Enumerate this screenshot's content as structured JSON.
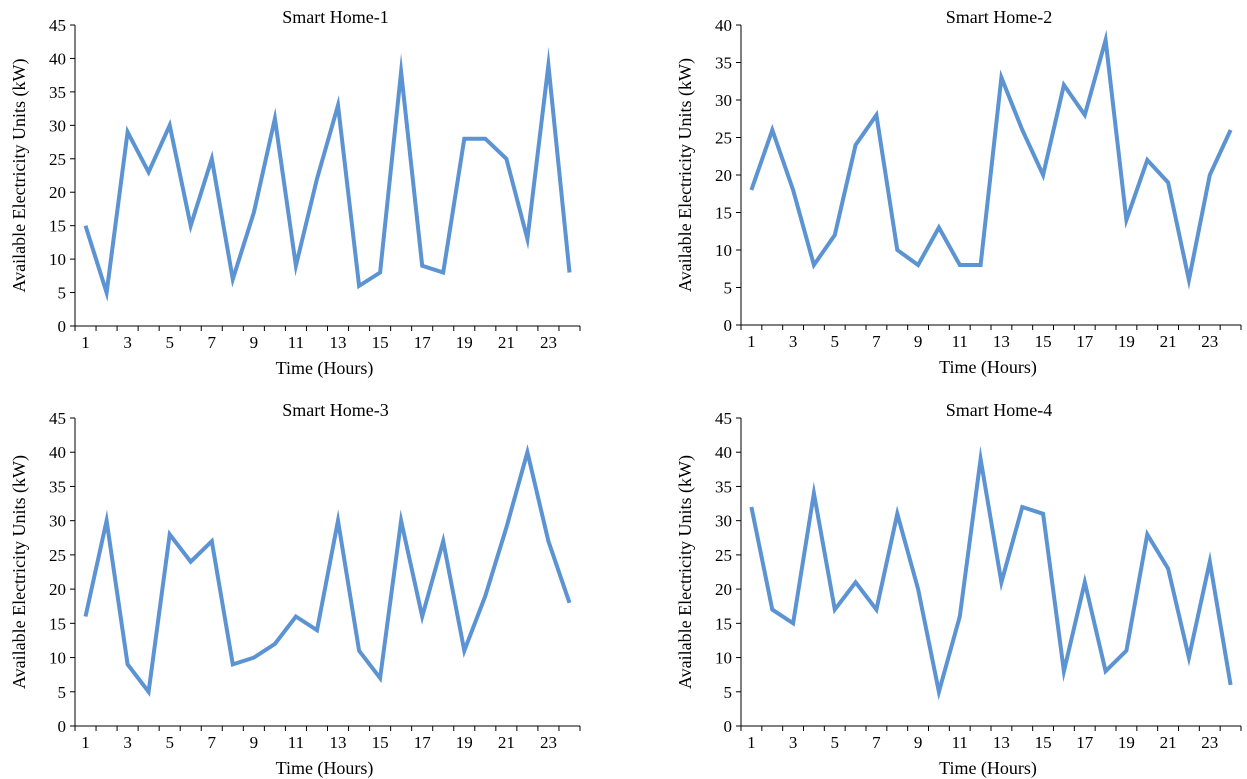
{
  "line_color": "#5b93d3",
  "chart_data": [
    {
      "type": "line",
      "title": "Smart Home-1",
      "xlabel": "Time (Hours)",
      "ylabel": "Available Electricity Units (kW)",
      "x": [
        1,
        2,
        3,
        4,
        5,
        6,
        7,
        8,
        9,
        10,
        11,
        12,
        13,
        14,
        15,
        16,
        17,
        18,
        19,
        20,
        21,
        22,
        23,
        24
      ],
      "xticks": [
        "1",
        "3",
        "5",
        "7",
        "9",
        "11",
        "13",
        "15",
        "17",
        "19",
        "21",
        "23"
      ],
      "ylim": [
        0,
        45
      ],
      "yticks": [
        "0",
        "5",
        "10",
        "15",
        "20",
        "25",
        "30",
        "35",
        "40",
        "45"
      ],
      "series": [
        {
          "values": [
            15,
            5,
            29,
            23,
            30,
            15,
            25,
            7,
            17,
            31,
            9,
            22,
            33,
            6,
            8,
            38,
            9,
            8,
            28,
            28,
            25,
            13,
            39,
            8
          ]
        }
      ]
    },
    {
      "type": "line",
      "title": "Smart Home-2",
      "xlabel": "Time (Hours)",
      "ylabel": "Available Electricity Units (kW)",
      "x": [
        1,
        2,
        3,
        4,
        5,
        6,
        7,
        8,
        9,
        10,
        11,
        12,
        13,
        14,
        15,
        16,
        17,
        18,
        19,
        20,
        21,
        22,
        23,
        24
      ],
      "xticks": [
        "1",
        "3",
        "5",
        "7",
        "9",
        "11",
        "13",
        "15",
        "17",
        "19",
        "21",
        "23"
      ],
      "ylim": [
        0,
        40
      ],
      "yticks": [
        "0",
        "5",
        "10",
        "15",
        "20",
        "25",
        "30",
        "35",
        "40"
      ],
      "series": [
        {
          "values": [
            18,
            26,
            18,
            8,
            12,
            24,
            28,
            10,
            8,
            13,
            8,
            8,
            33,
            26,
            20,
            32,
            28,
            38,
            14,
            22,
            19,
            6,
            20,
            26
          ]
        }
      ]
    },
    {
      "type": "line",
      "title": "Smart Home-3",
      "xlabel": "Time (Hours)",
      "ylabel": "Available Electricity Units (kW)",
      "x": [
        1,
        2,
        3,
        4,
        5,
        6,
        7,
        8,
        9,
        10,
        11,
        12,
        13,
        14,
        15,
        16,
        17,
        18,
        19,
        20,
        21,
        22,
        23,
        24
      ],
      "xticks": [
        "1",
        "3",
        "5",
        "7",
        "9",
        "11",
        "13",
        "15",
        "17",
        "19",
        "21",
        "23"
      ],
      "ylim": [
        0,
        45
      ],
      "yticks": [
        "0",
        "5",
        "10",
        "15",
        "20",
        "25",
        "30",
        "35",
        "40",
        "45"
      ],
      "series": [
        {
          "values": [
            16,
            30,
            9,
            5,
            28,
            24,
            27,
            9,
            10,
            12,
            16,
            14,
            30,
            11,
            7,
            30,
            16,
            27,
            11,
            19,
            29,
            40,
            27,
            18
          ]
        }
      ]
    },
    {
      "type": "line",
      "title": "Smart Home-4",
      "xlabel": "Time (Hours)",
      "ylabel": "Available Electricity Units (kW)",
      "x": [
        1,
        2,
        3,
        4,
        5,
        6,
        7,
        8,
        9,
        10,
        11,
        12,
        13,
        14,
        15,
        16,
        17,
        18,
        19,
        20,
        21,
        22,
        23,
        24
      ],
      "xticks": [
        "1",
        "3",
        "5",
        "7",
        "9",
        "11",
        "13",
        "15",
        "17",
        "19",
        "21",
        "23"
      ],
      "ylim": [
        0,
        45
      ],
      "yticks": [
        "0",
        "5",
        "10",
        "15",
        "20",
        "25",
        "30",
        "35",
        "40",
        "45"
      ],
      "series": [
        {
          "values": [
            32,
            17,
            15,
            34,
            17,
            21,
            17,
            31,
            20,
            5,
            16,
            39,
            21,
            32,
            31,
            8,
            21,
            8,
            11,
            28,
            23,
            10,
            24,
            6
          ]
        }
      ]
    }
  ]
}
